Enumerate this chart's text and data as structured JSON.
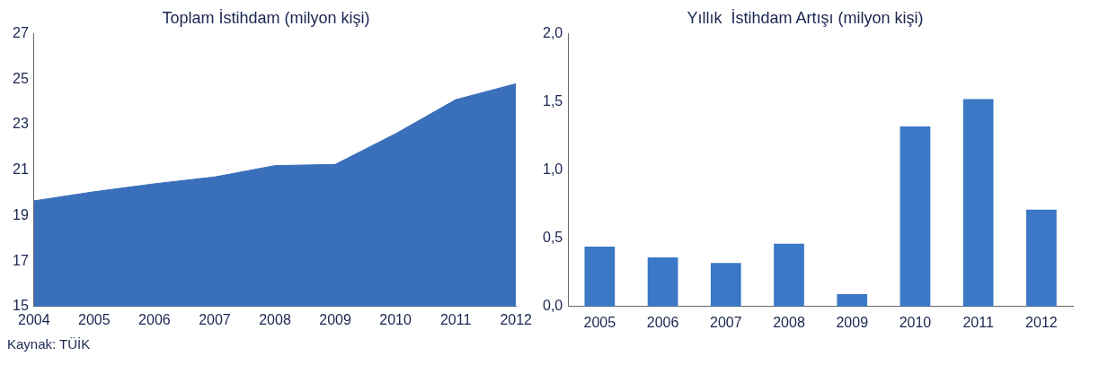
{
  "chart_data": [
    {
      "type": "area",
      "title": "Toplam İstihdam (milyon kişi)",
      "x": [
        2004,
        2005,
        2006,
        2007,
        2008,
        2009,
        2010,
        2011,
        2012
      ],
      "series": [
        {
          "color": "#3a6fbb",
          "values": [
            19.65,
            20.05,
            20.4,
            20.7,
            21.2,
            21.25,
            22.6,
            24.1,
            24.8
          ]
        }
      ],
      "xlim": [
        2004,
        2012
      ],
      "xticks": [
        2004,
        2005,
        2006,
        2007,
        2008,
        2009,
        2010,
        2011,
        2012
      ],
      "ylim": [
        15,
        27
      ],
      "yticks": [
        15,
        17,
        19,
        21,
        23,
        25,
        27
      ],
      "grid": false,
      "legend": false,
      "annotations": [
        "Kaynak: TÜİK"
      ]
    },
    {
      "type": "bar",
      "title": "Yıllık  İstihdam Artışı (milyon kişi)",
      "categories": [
        "2005",
        "2006",
        "2007",
        "2008",
        "2009",
        "2010",
        "2011",
        "2012"
      ],
      "series": [
        {
          "color": "#3b78c6",
          "values": [
            0.44,
            0.36,
            0.32,
            0.46,
            0.09,
            1.32,
            1.52,
            0.71
          ]
        }
      ],
      "ylim": [
        0,
        2
      ],
      "yticks": [
        {
          "value": 0,
          "label": "0,0"
        },
        {
          "value": 0.5,
          "label": "0,5"
        },
        {
          "value": 1,
          "label": "1,0"
        },
        {
          "value": 1.5,
          "label": "1,5"
        },
        {
          "value": 2,
          "label": "2,0"
        }
      ],
      "grid": false,
      "legend": false
    }
  ]
}
